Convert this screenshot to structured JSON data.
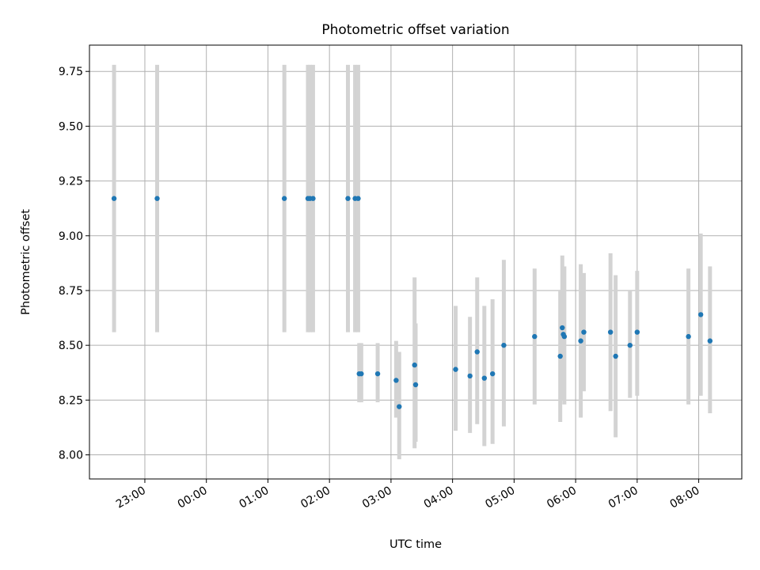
{
  "chart_data": {
    "type": "scatter",
    "title": "Photometric offset variation",
    "xlabel": "UTC time",
    "ylabel": "Photometric offset",
    "grid": true,
    "legend": "none",
    "x_axis_type": "time",
    "xlim": [
      "22:06",
      "08:42"
    ],
    "ylim": [
      7.89,
      9.87
    ],
    "x_ticks": [
      "23:00",
      "00:00",
      "01:00",
      "02:00",
      "03:00",
      "04:00",
      "05:00",
      "06:00",
      "07:00",
      "08:00"
    ],
    "y_ticks": [
      "8.00",
      "8.25",
      "8.50",
      "8.75",
      "9.00",
      "9.25",
      "9.50",
      "9.75"
    ],
    "colors": {
      "point": "#1f77b4",
      "errorbar": "#d3d3d3",
      "grid": "#b0b0b0"
    },
    "series": [
      {
        "x": [
          "22:30",
          "23:12",
          "01:16",
          "01:39",
          "01:41",
          "01:44",
          "02:18",
          "02:25",
          "02:28",
          "02:29",
          "02:31",
          "02:47",
          "03:05",
          "03:08",
          "03:23",
          "03:24",
          "04:03",
          "04:17",
          "04:24",
          "04:31",
          "04:39",
          "04:50",
          "05:20",
          "05:45",
          "05:47",
          "05:48",
          "05:49",
          "06:05",
          "06:08",
          "06:34",
          "06:39",
          "06:53",
          "07:00",
          "07:50",
          "08:02",
          "08:11"
        ],
        "y": [
          9.17,
          9.17,
          9.17,
          9.17,
          9.17,
          9.17,
          9.17,
          9.17,
          9.17,
          8.37,
          8.37,
          8.37,
          8.34,
          8.22,
          8.41,
          8.32,
          8.39,
          8.36,
          8.47,
          8.35,
          8.37,
          8.5,
          8.54,
          8.45,
          8.58,
          8.55,
          8.54,
          8.52,
          8.56,
          8.56,
          8.45,
          8.5,
          8.56,
          8.54,
          8.64,
          8.52
        ],
        "err_low": [
          8.56,
          8.56,
          8.56,
          8.56,
          8.56,
          8.56,
          8.56,
          8.56,
          8.56,
          8.24,
          8.24,
          8.24,
          8.17,
          7.98,
          8.03,
          8.06,
          8.11,
          8.1,
          8.14,
          8.04,
          8.05,
          8.13,
          8.23,
          8.15,
          8.27,
          8.25,
          8.23,
          8.17,
          8.29,
          8.2,
          8.08,
          8.26,
          8.27,
          8.23,
          8.27,
          8.19
        ],
        "err_high": [
          9.78,
          9.78,
          9.78,
          9.78,
          9.78,
          9.78,
          9.78,
          9.78,
          9.78,
          8.51,
          8.51,
          8.51,
          8.52,
          8.47,
          8.81,
          8.6,
          8.68,
          8.63,
          8.81,
          8.68,
          8.71,
          8.89,
          8.85,
          8.75,
          8.91,
          8.86,
          8.86,
          8.87,
          8.83,
          8.92,
          8.82,
          8.75,
          8.84,
          8.85,
          9.01,
          8.86
        ]
      }
    ]
  }
}
